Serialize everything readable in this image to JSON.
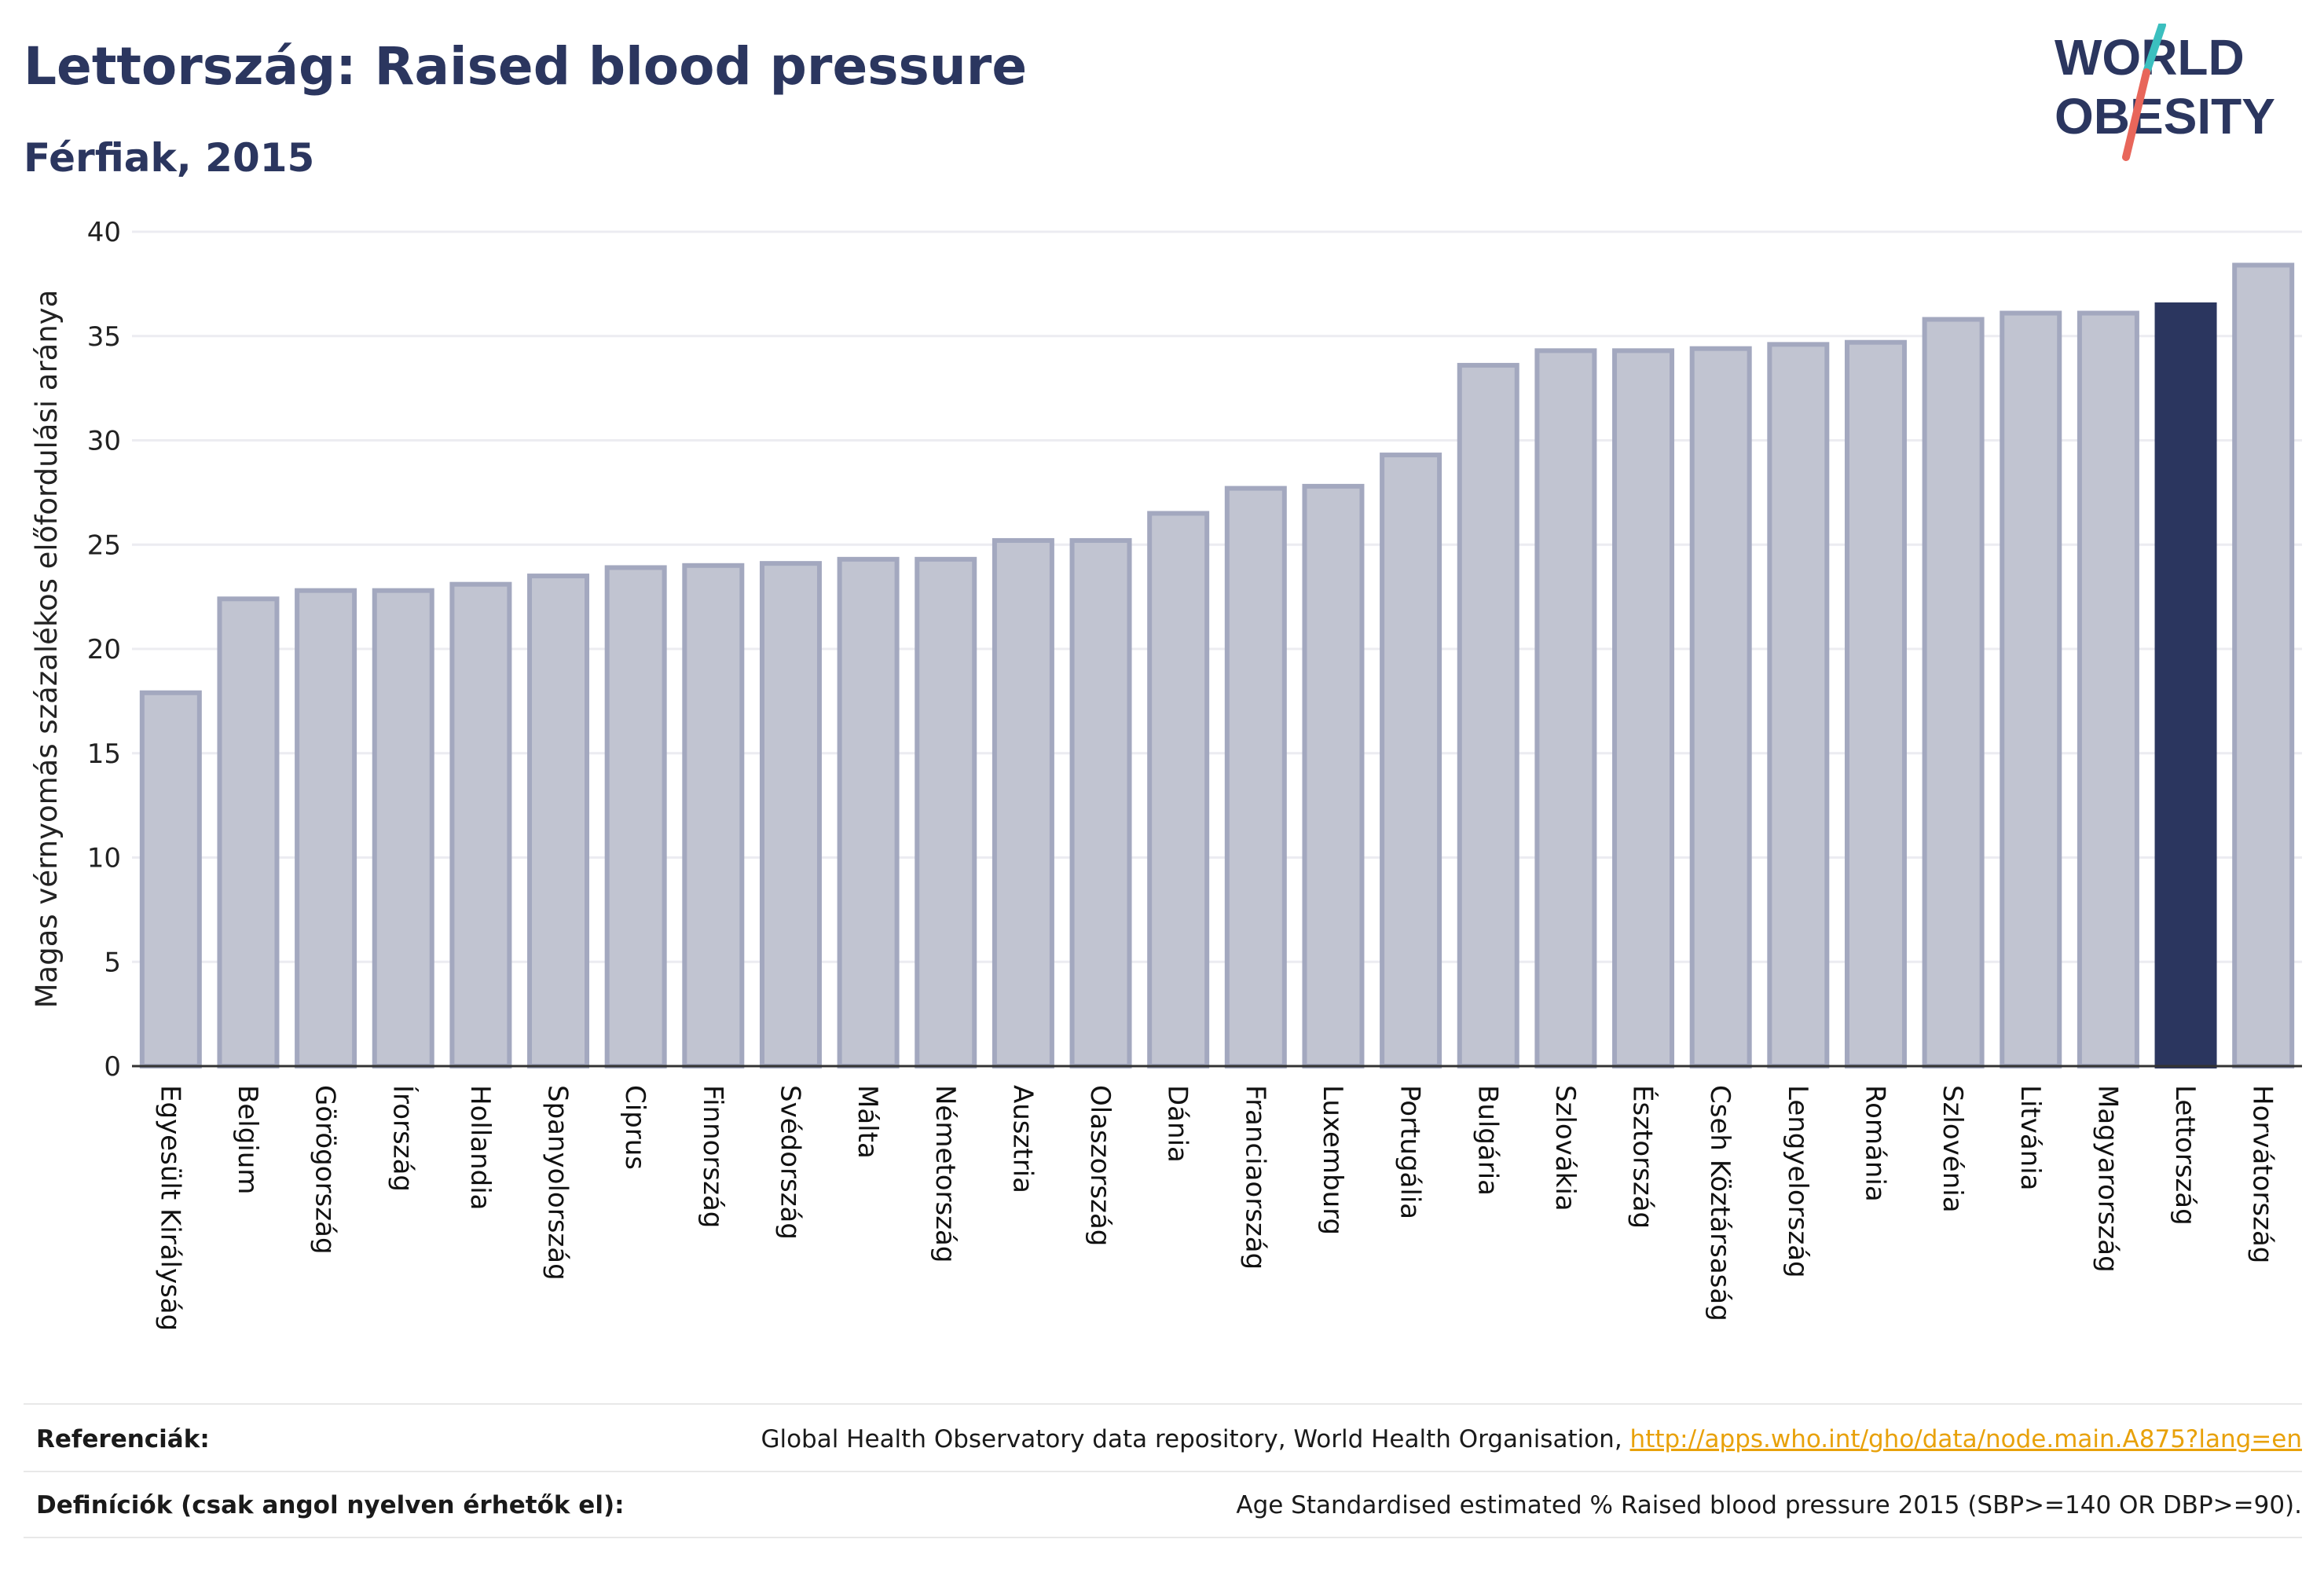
{
  "header": {
    "title": "Lettország: Raised blood pressure",
    "subtitle": "Férfiak, 2015"
  },
  "logo": {
    "line1": "WORLD",
    "line2": "OBESITY",
    "colors": {
      "text": "#2b365f",
      "slash_top": "#3bbfbf",
      "slash_bottom": "#e8665a"
    }
  },
  "colors": {
    "bar_fill": "#c1c4d1",
    "bar_stroke": "#a3a8bf",
    "highlight_fill": "#2b365f",
    "grid": "#ececf1",
    "axis": "#333333"
  },
  "chart_data": {
    "type": "bar",
    "ylabel": "Magas vérnyomás százalékos előfordulási aránya",
    "xlabel": "",
    "ylim": [
      0,
      40
    ],
    "yticks": [
      0,
      5,
      10,
      15,
      20,
      25,
      30,
      35,
      40
    ],
    "grid": true,
    "highlight": "Lettország",
    "categories": [
      "Egyesült Királyság",
      "Belgium",
      "Görögország",
      "Írország",
      "Hollandia",
      "Spanyolország",
      "Ciprus",
      "Finnország",
      "Svédország",
      "Málta",
      "Németország",
      "Ausztria",
      "Olaszország",
      "Dánia",
      "Franciaország",
      "Luxemburg",
      "Portugália",
      "Bulgária",
      "Szlovákia",
      "Észtország",
      "Cseh Köztársaság",
      "Lengyelország",
      "Románia",
      "Szlovénia",
      "Litvánia",
      "Magyarország",
      "Lettország",
      "Horvátország"
    ],
    "values": [
      17.9,
      22.4,
      22.8,
      22.8,
      23.1,
      23.5,
      23.9,
      24.0,
      24.1,
      24.3,
      24.3,
      25.2,
      25.2,
      26.5,
      27.7,
      27.8,
      29.3,
      33.6,
      34.3,
      34.3,
      34.4,
      34.6,
      34.7,
      35.8,
      36.1,
      36.1,
      36.5,
      38.4
    ]
  },
  "footer": {
    "references_label": "Referenciák:",
    "references_text": "Global Health Observatory data repository, World Health Organisation, ",
    "references_link": "http://apps.who.int/gho/data/node.main.A875?lang=en",
    "definitions_label": "Definíciók (csak angol nyelven érhetők el):",
    "definitions_text": "Age Standardised estimated % Raised blood pressure 2015 (SBP>=140 OR DBP>=90)."
  }
}
